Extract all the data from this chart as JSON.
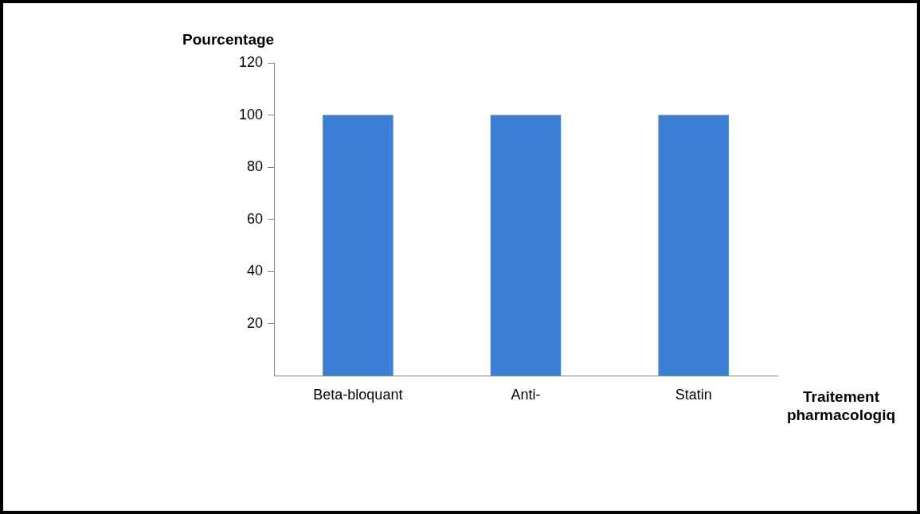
{
  "chart_data": {
    "type": "bar",
    "xlabel": "Traitement pharmacologiq",
    "ylabel": "Pourcentage",
    "categories": [
      "Beta-bloquant",
      "Anti-",
      "Statin"
    ],
    "values": [
      100,
      100,
      100
    ],
    "color": "#3c7fd6",
    "ylim": [
      0,
      120
    ],
    "yticks": [
      20,
      40,
      60,
      80,
      100,
      120
    ],
    "grid": false,
    "legend": false
  }
}
